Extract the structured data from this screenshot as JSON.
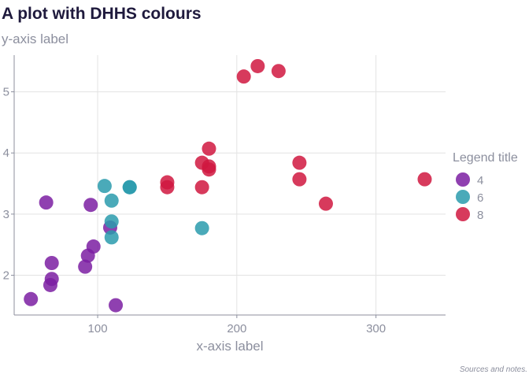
{
  "title": "A plot with DHHS colours",
  "subtitle": "y-axis label",
  "caption": "Sources and notes.",
  "chart_data": {
    "type": "scatter",
    "xlabel": "x-axis label",
    "ylabel": "y-axis label",
    "xlim": [
      40,
      350
    ],
    "ylim": [
      1.35,
      5.6
    ],
    "xticks": [
      100,
      200,
      300
    ],
    "yticks": [
      2,
      3,
      4,
      5
    ],
    "grid": true,
    "legend": {
      "title": "Legend title",
      "position": "right"
    },
    "series": [
      {
        "name": "4",
        "color": "#7b1fa2",
        "points": [
          [
            52,
            1.61
          ],
          [
            63,
            3.19
          ],
          [
            66,
            1.84
          ],
          [
            67,
            1.94
          ],
          [
            67,
            2.2
          ],
          [
            91,
            2.14
          ],
          [
            93,
            2.32
          ],
          [
            95,
            3.15
          ],
          [
            97,
            2.47
          ],
          [
            109,
            2.78
          ],
          [
            113,
            1.51
          ]
        ]
      },
      {
        "name": "6",
        "color": "#2a9bad",
        "points": [
          [
            105,
            3.46
          ],
          [
            110,
            3.22
          ],
          [
            110,
            2.88
          ],
          [
            110,
            2.62
          ],
          [
            123,
            3.44
          ],
          [
            123,
            3.44
          ],
          [
            175,
            2.77
          ]
        ]
      },
      {
        "name": "8",
        "color": "#d0173f",
        "points": [
          [
            150,
            3.52
          ],
          [
            150,
            3.44
          ],
          [
            175,
            3.44
          ],
          [
            175,
            3.84
          ],
          [
            180,
            4.07
          ],
          [
            180,
            3.73
          ],
          [
            180,
            3.78
          ],
          [
            205,
            5.25
          ],
          [
            215,
            5.42
          ],
          [
            230,
            5.34
          ],
          [
            245,
            3.57
          ],
          [
            245,
            3.84
          ],
          [
            264,
            3.17
          ],
          [
            335,
            3.57
          ]
        ]
      }
    ]
  }
}
